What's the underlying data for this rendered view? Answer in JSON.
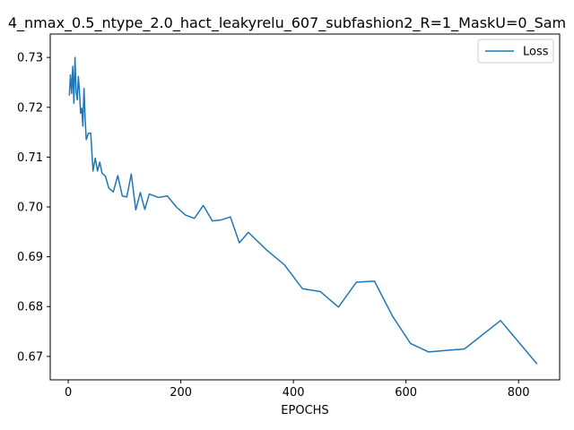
{
  "chart_data": {
    "type": "line",
    "title": "4_nmax_0.5_ntype_2.0_hact_leakyrelu_607_subfashion2_R=1_MaskU=0_Sam",
    "xlabel": "EPOCHS",
    "ylabel": "",
    "xlim": [
      -32,
      873
    ],
    "ylim": [
      0.6653,
      0.7347
    ],
    "xticks": [
      0,
      200,
      400,
      600,
      800
    ],
    "yticks": [
      0.67,
      0.68,
      0.69,
      0.7,
      0.71,
      0.72,
      0.73
    ],
    "ytick_labels": [
      "0.67",
      "0.68",
      "0.69",
      "0.70",
      "0.71",
      "0.72",
      "0.73"
    ],
    "grid": false,
    "legend_position": "top-right",
    "series": [
      {
        "name": "Loss",
        "color": "#1f77b4",
        "x": [
          2,
          4,
          6,
          8,
          10,
          12,
          14,
          16,
          18,
          20,
          22,
          24,
          26,
          28,
          30,
          32,
          36,
          40,
          44,
          48,
          52,
          56,
          60,
          66,
          72,
          80,
          88,
          96,
          104,
          112,
          120,
          128,
          136,
          144,
          160,
          176,
          192,
          208,
          224,
          240,
          256,
          272,
          288,
          304,
          320,
          352,
          384,
          416,
          448,
          480,
          512,
          544,
          576,
          608,
          640,
          672,
          704,
          768,
          832
        ],
        "y": [
          0.7225,
          0.7265,
          0.7228,
          0.7282,
          0.7208,
          0.73,
          0.7232,
          0.7215,
          0.7262,
          0.723,
          0.7188,
          0.7198,
          0.7162,
          0.7238,
          0.7178,
          0.7135,
          0.7148,
          0.7148,
          0.7072,
          0.7098,
          0.7072,
          0.709,
          0.7068,
          0.7062,
          0.7038,
          0.703,
          0.7063,
          0.7022,
          0.702,
          0.7066,
          0.6994,
          0.7029,
          0.6995,
          0.7026,
          0.7019,
          0.7022,
          0.7,
          0.6984,
          0.6977,
          0.7003,
          0.6972,
          0.6974,
          0.698,
          0.6928,
          0.6949,
          0.6914,
          0.6884,
          0.6836,
          0.683,
          0.6799,
          0.6849,
          0.6851,
          0.6781,
          0.6726,
          0.6709,
          0.6712,
          0.6715,
          0.6772,
          0.6686
        ]
      }
    ]
  }
}
